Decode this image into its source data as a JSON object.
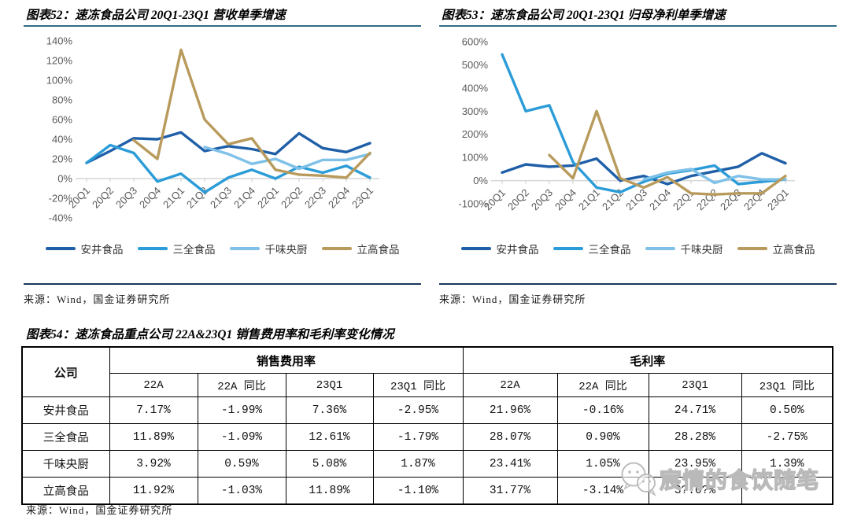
{
  "figures": {
    "fig52": {
      "title": "图表52：速冻食品公司 20Q1-23Q1 营收单季增速",
      "source": "来源：Wind，国金证券研究所"
    },
    "fig53": {
      "title": "图表53：速冻食品公司 20Q1-23Q1 归母净利单季增速",
      "source": "来源：Wind，国金证券研究所"
    },
    "fig54": {
      "title": "图表54：速冻食品重点公司 22A&23Q1 销售费用率和毛利率变化情况",
      "source": "来源：Wind，国金证券研究所"
    }
  },
  "colors": {
    "anjing_dark_blue": "#1f5fa8",
    "sanquan_blue": "#2b9cd8",
    "qianwei_light_blue": "#7fc1e8",
    "ligao_gold": "#b89b5c",
    "title_rule": "#2e6d86",
    "source_rule": "#17365d",
    "axis_gray": "#d6d6d6"
  },
  "chart_data": [
    {
      "type": "line",
      "title": "速冻食品公司 20Q1-23Q1 营收单季增速",
      "unit": "%",
      "categories": [
        "20Q1",
        "20Q2",
        "20Q3",
        "20Q4",
        "21Q1",
        "21Q2",
        "21Q3",
        "21Q4",
        "22Q1",
        "22Q2",
        "22Q3",
        "22Q4",
        "23Q1"
      ],
      "series": [
        {
          "name": "安井食品",
          "color": "#1f5fa8",
          "values": [
            16,
            28,
            41,
            40,
            47,
            28,
            33,
            30,
            25,
            46,
            31,
            27,
            36
          ]
        },
        {
          "name": "三全食品",
          "color": "#2b9cd8",
          "values": [
            16,
            34,
            26,
            -3,
            5,
            -14,
            1,
            9,
            0,
            12,
            6,
            13,
            1
          ]
        },
        {
          "name": "千味央厨",
          "color": "#7fc1e8",
          "values": [
            null,
            null,
            null,
            null,
            null,
            32,
            25,
            15,
            20,
            10,
            19,
            19,
            25
          ]
        },
        {
          "name": "立高食品",
          "color": "#b89b5c",
          "values": [
            null,
            null,
            39,
            20,
            131,
            60,
            35,
            41,
            9,
            4,
            3,
            1,
            26
          ]
        }
      ],
      "ylim": [
        -40,
        140
      ],
      "ytick_step": 20,
      "grid": false,
      "legend_position": "bottom"
    },
    {
      "type": "line",
      "title": "速冻食品公司 20Q1-23Q1 归母净利单季增速",
      "unit": "%",
      "categories": [
        "20Q1",
        "20Q2",
        "20Q3",
        "20Q4",
        "21Q1",
        "21Q2",
        "21Q3",
        "21Q4",
        "22Q1",
        "22Q2",
        "22Q3",
        "22Q4",
        "23Q1"
      ],
      "series": [
        {
          "name": "安井食品",
          "color": "#1f5fa8",
          "values": [
            35,
            70,
            60,
            65,
            95,
            0,
            20,
            -15,
            20,
            40,
            60,
            118,
            75
          ]
        },
        {
          "name": "三全食品",
          "color": "#2b9cd8",
          "values": [
            545,
            300,
            325,
            80,
            -30,
            -50,
            -5,
            30,
            45,
            65,
            -15,
            -5,
            5
          ]
        },
        {
          "name": "千味央厨",
          "color": "#7fc1e8",
          "values": [
            null,
            null,
            null,
            null,
            null,
            null,
            5,
            35,
            50,
            -10,
            20,
            5,
            5
          ]
        },
        {
          "name": "立高食品",
          "color": "#b89b5c",
          "values": [
            null,
            null,
            110,
            10,
            300,
            10,
            -30,
            15,
            -55,
            -60,
            -55,
            -55,
            20
          ]
        }
      ],
      "ylim": [
        -100,
        600
      ],
      "ytick_step": 100,
      "grid": false,
      "legend_position": "bottom"
    }
  ],
  "table54": {
    "company_header": "公司",
    "groups": [
      {
        "label": "销售费用率",
        "cols": [
          "22A",
          "22A 同比",
          "23Q1",
          "23Q1 同比"
        ]
      },
      {
        "label": "毛利率",
        "cols": [
          "22A",
          "22A 同比",
          "23Q1",
          "23Q1 同比"
        ]
      }
    ],
    "rows": [
      {
        "company": "安井食品",
        "values": [
          "7.17%",
          "-1.99%",
          "7.36%",
          "-2.95%",
          "21.96%",
          "-0.16%",
          "24.71%",
          "0.50%"
        ]
      },
      {
        "company": "三全食品",
        "values": [
          "11.89%",
          "-1.09%",
          "12.61%",
          "-1.79%",
          "28.07%",
          "0.90%",
          "28.28%",
          "-2.75%"
        ]
      },
      {
        "company": "千味央厨",
        "values": [
          "3.92%",
          "0.59%",
          "5.08%",
          "1.87%",
          "23.41%",
          "1.05%",
          "23.95%",
          "1.39%"
        ]
      },
      {
        "company": "立高食品",
        "values": [
          "11.92%",
          "-1.03%",
          "11.89%",
          "-1.10%",
          "31.77%",
          "-3.14%",
          "3?.0?%",
          ""
        ]
      }
    ]
  },
  "watermark": {
    "text": "宸情的食饮随笔",
    "icon": "wechat-icon"
  }
}
